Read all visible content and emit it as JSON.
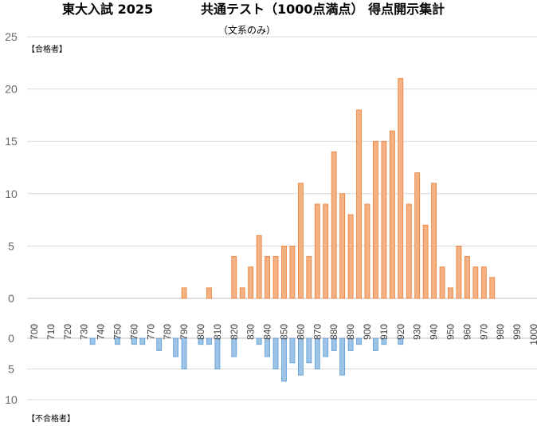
{
  "chart_data": {
    "type": "bar",
    "title_left": "東大入試 2025",
    "title_right": "共通テスト（1000点満点） 得点開示集計",
    "subtitle": "（文系のみ）",
    "x": [
      700,
      705,
      710,
      715,
      720,
      725,
      730,
      735,
      740,
      745,
      750,
      755,
      760,
      765,
      770,
      775,
      780,
      785,
      790,
      795,
      800,
      805,
      810,
      815,
      820,
      825,
      830,
      835,
      840,
      845,
      850,
      855,
      860,
      865,
      870,
      875,
      880,
      885,
      890,
      895,
      900,
      905,
      910,
      915,
      920,
      925,
      930,
      935,
      940,
      945,
      950,
      955,
      960,
      965,
      970,
      975,
      980,
      985,
      990,
      995,
      1000
    ],
    "xtick_labels": [
      "700",
      "710",
      "720",
      "730",
      "740",
      "750",
      "760",
      "770",
      "780",
      "790",
      "800",
      "810",
      "820",
      "830",
      "840",
      "850",
      "860",
      "870",
      "880",
      "890",
      "900",
      "910",
      "920",
      "930",
      "940",
      "950",
      "960",
      "970",
      "980",
      "990",
      "1000"
    ],
    "series": [
      {
        "name": "【合格者】",
        "color": "#f4b183",
        "stroke": "#ed7d31",
        "values": [
          0,
          0,
          0,
          0,
          0,
          0,
          0,
          0,
          0,
          0,
          0,
          0,
          0,
          0,
          0,
          0,
          0,
          0,
          1,
          0,
          0,
          1,
          0,
          0,
          4,
          1,
          3,
          6,
          4,
          4,
          5,
          5,
          11,
          4,
          9,
          9,
          14,
          10,
          8,
          18,
          9,
          15,
          15,
          16,
          21,
          9,
          12,
          7,
          11,
          3,
          1,
          5,
          4,
          3,
          3,
          2,
          0,
          0,
          0,
          0,
          0
        ]
      },
      {
        "name": "【不合格者】",
        "color": "#9dc3e6",
        "stroke": "#5b9bd5",
        "values": [
          0,
          0,
          0,
          0,
          0,
          0,
          0,
          1,
          0,
          0,
          1,
          0,
          1,
          1,
          0,
          2,
          0,
          3,
          5,
          0,
          1,
          1,
          5,
          0,
          3,
          0,
          0,
          1,
          3,
          5,
          7,
          4,
          6,
          4,
          5,
          3,
          2,
          6,
          2,
          1,
          0,
          2,
          1,
          0,
          1,
          0,
          0,
          0,
          0,
          0,
          0,
          0,
          0,
          0,
          0,
          0,
          0,
          0,
          0,
          0,
          0
        ]
      }
    ],
    "upper_yticks": [
      "25",
      "20",
      "15",
      "10",
      "5",
      "0"
    ],
    "lower_yticks": [
      "0",
      "5",
      "10"
    ],
    "upper_ylim": [
      0,
      25
    ],
    "lower_ylim": [
      0,
      10
    ],
    "grid": true
  }
}
